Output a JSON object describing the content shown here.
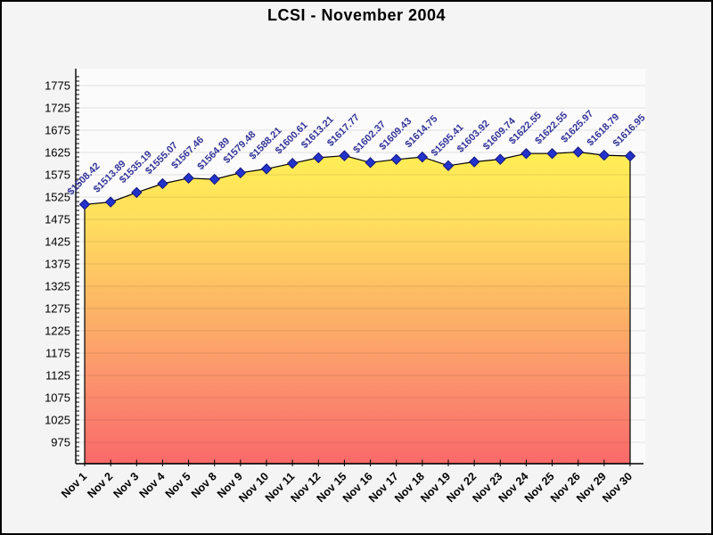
{
  "page": {
    "title": "LCSI - November 2004"
  },
  "chart_data": {
    "type": "area",
    "title": "LCSI - November 2004",
    "xlabel": "",
    "ylabel": "",
    "categories": [
      "Nov 1",
      "Nov 2",
      "Nov 3",
      "Nov 4",
      "Nov 5",
      "Nov 8",
      "Nov 9",
      "Nov 10",
      "Nov 11",
      "Nov 12",
      "Nov 15",
      "Nov 16",
      "Nov 17",
      "Nov 18",
      "Nov 19",
      "Nov 22",
      "Nov 23",
      "Nov 24",
      "Nov 25",
      "Nov 26",
      "Nov 29",
      "Nov 30"
    ],
    "values": [
      1508.42,
      1513.89,
      1535.19,
      1555.07,
      1567.46,
      1564.89,
      1579.48,
      1588.21,
      1600.61,
      1613.21,
      1617.77,
      1602.37,
      1609.43,
      1614.75,
      1595.41,
      1603.92,
      1609.74,
      1622.55,
      1622.55,
      1625.97,
      1618.79,
      1616.95
    ],
    "point_labels": [
      "$1508.42",
      "$1513.89",
      "$1535.19",
      "$1555.07",
      "$1567.46",
      "$1564.89",
      "$1579.48",
      "$1588.21",
      "$1600.61",
      "$1613.21",
      "$1617.77",
      "$1602.37",
      "$1609.43",
      "$1614.75",
      "$1595.41",
      "$1603.92",
      "$1609.74",
      "$1622.55",
      "$1622.55",
      "$1625.97",
      "$1618.79",
      "$1616.95"
    ],
    "ylim": [
      975,
      1775
    ],
    "ytick_interval": 50,
    "ytick_minor_interval": 10,
    "ytick_labels": [
      "1775",
      "1725",
      "1675",
      "1625",
      "1575",
      "1525",
      "1475",
      "1425",
      "1375",
      "1325",
      "1275",
      "1225",
      "1175",
      "1125",
      "1075",
      "1025",
      "975"
    ],
    "grid": "horizontal",
    "legend_position": "none",
    "marker": "diamond",
    "colors": {
      "background": "#F4F4F4",
      "plot_background": "#FBFBFB",
      "area_gradient_top": "#FFEE55",
      "area_gradient_upper_mid": "#FFDE5E",
      "area_gradient_mid": "#FDBA64",
      "area_gradient_lower_mid": "#FB946D",
      "area_gradient_bottom": "#F9696A",
      "line": "#000000",
      "marker_fill": "#2233CC",
      "marker_border": "#14147A",
      "point_label_text": "#333399",
      "axis": "#000000",
      "gridline": "rgba(0,0,0,0.10)",
      "tick_label_text": "#000000",
      "title_text": "#000000"
    }
  }
}
